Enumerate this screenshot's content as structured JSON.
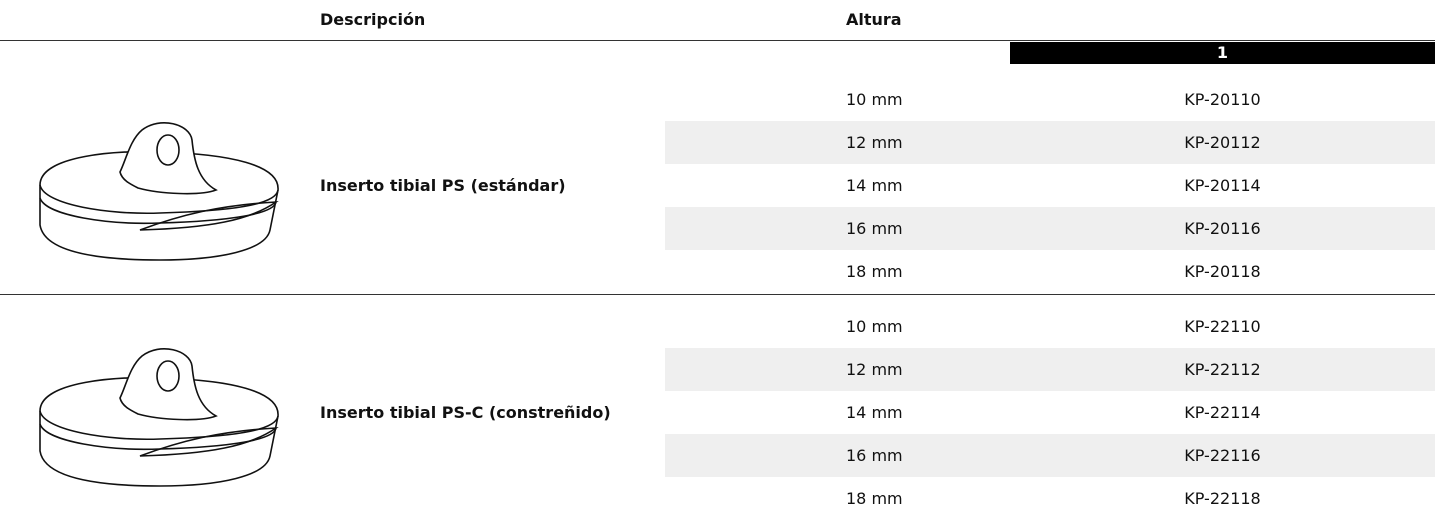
{
  "header": {
    "description": "Descripción",
    "height": "Altura",
    "size": "1"
  },
  "groups": [
    {
      "description": "Inserto tibial PS (estándar)",
      "rows": [
        [
          "10 mm",
          "KP-20110"
        ],
        [
          "12 mm",
          "KP-20112"
        ],
        [
          "14 mm",
          "KP-20114"
        ],
        [
          "16 mm",
          "KP-20116"
        ],
        [
          "18 mm",
          "KP-20118"
        ]
      ]
    },
    {
      "description": "Inserto tibial PS-C (constreñido)",
      "rows": [
        [
          "10 mm",
          "KP-22110"
        ],
        [
          "12 mm",
          "KP-22112"
        ],
        [
          "14 mm",
          "KP-22114"
        ],
        [
          "16 mm",
          "KP-22116"
        ],
        [
          "18 mm",
          "KP-22118"
        ]
      ]
    }
  ]
}
